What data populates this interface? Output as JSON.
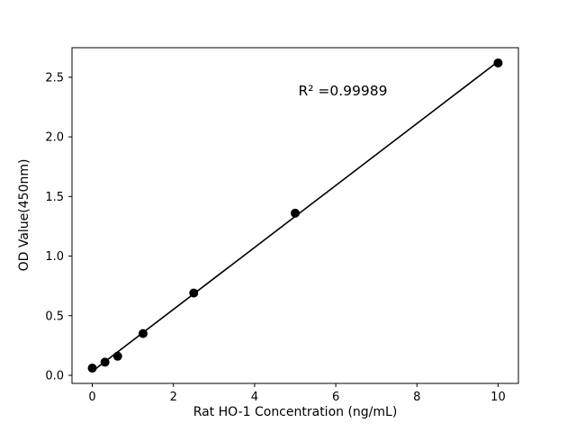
{
  "chart_data": {
    "type": "scatter",
    "title": "",
    "xlabel": "Rat HO-1 Concentration (ng/mL)",
    "ylabel": "OD Value(450nm)",
    "annotation": "R² =0.99989",
    "annotation_pos": {
      "x": 6.15,
      "y": 2.39
    },
    "x": [
      0,
      0.3125,
      0.625,
      1.25,
      2.5,
      5,
      10
    ],
    "y": [
      0.06,
      0.11,
      0.16,
      0.35,
      0.69,
      1.36,
      2.62
    ],
    "fit_line": true,
    "xlim": [
      -0.5,
      10.5
    ],
    "ylim": [
      -0.068,
      2.748
    ],
    "xticks": [
      0,
      2,
      4,
      6,
      8,
      10
    ],
    "xtick_labels": [
      "0",
      "2",
      "4",
      "6",
      "8",
      "10"
    ],
    "yticks": [
      0.0,
      0.5,
      1.0,
      1.5,
      2.0,
      2.5
    ],
    "ytick_labels": [
      "0.0",
      "0.5",
      "1.0",
      "1.5",
      "2.0",
      "2.5"
    ],
    "legend": "none",
    "grid": "off",
    "marker_color": "#000000",
    "line_color": "#000000",
    "axis_color": "#000000",
    "background": "#ffffff"
  }
}
